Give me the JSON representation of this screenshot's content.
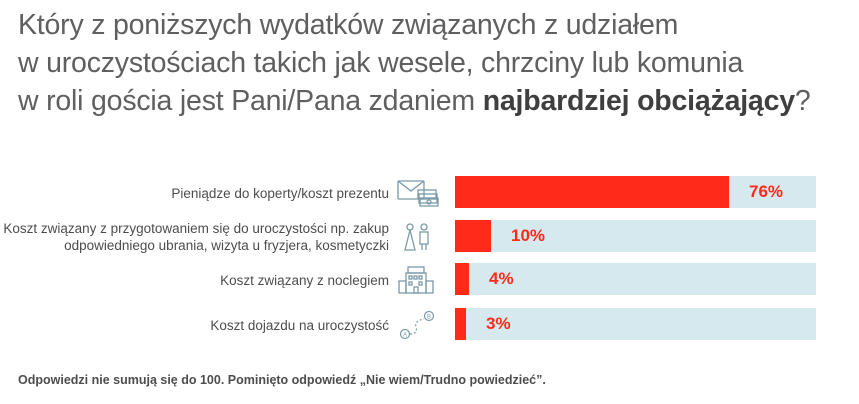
{
  "title": {
    "line1": "Który z poniższych wydatków związanych z udziałem",
    "line2": "w uroczystościach takich jak wesele, chrzciny lub komunia",
    "line3_pre": "w roli gościa jest Pani/Pana zdaniem ",
    "line3_bold": "najbardziej obciążający",
    "line3_post": "?"
  },
  "chart_data": {
    "type": "bar",
    "orientation": "horizontal",
    "categories": [
      "Pieniądze do koperty/koszt prezentu",
      "Koszt związany z przygotowaniem się do uroczystości np. zakup odpowiedniego ubrania, wizyta u fryzjera, kosmetyczki",
      "Koszt związany z noclegiem",
      "Koszt dojazdu na uroczystość"
    ],
    "values": [
      76,
      10,
      4,
      3
    ],
    "value_labels": [
      "76%",
      "10%",
      "4%",
      "3%"
    ],
    "xlim": [
      0,
      100
    ],
    "bar_color": "#ff2a1a",
    "track_color": "#d5e9ee",
    "icons": [
      "envelope-money-icon",
      "bride-groom-icon",
      "hotel-icon",
      "route-icon"
    ]
  },
  "footnote": "Odpowiedzi nie sumują się do 100. Pominięto odpowiedź „Nie wiem/Trudno powiedzieć”."
}
